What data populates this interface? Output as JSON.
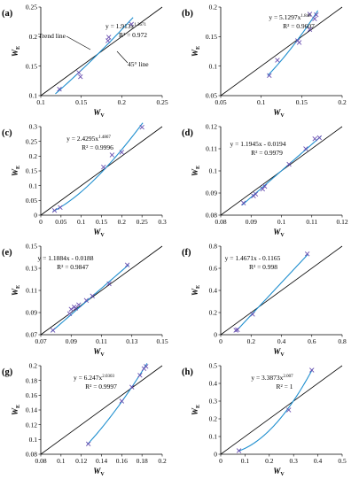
{
  "chart_data": [
    {
      "type": "scatter",
      "label": "(a)",
      "xlabel": "W",
      "xsub": "V",
      "ylabel": "W",
      "ysub": "E",
      "xlim": [
        0.1,
        0.25
      ],
      "ylim": [
        0.1,
        0.25
      ],
      "xticks": [
        "0.1",
        "0.15",
        "0.2",
        "0.25"
      ],
      "yticks": [
        "0.1",
        "0.15",
        "0.2",
        "0.25"
      ],
      "points": [
        [
          0.123,
          0.111
        ],
        [
          0.147,
          0.139
        ],
        [
          0.149,
          0.132
        ],
        [
          0.183,
          0.193
        ],
        [
          0.184,
          0.199
        ],
        [
          0.212,
          0.221
        ]
      ],
      "fit": {
        "kind": "power",
        "a": 1.913,
        "b": 1.3671,
        "xrange": [
          0.118,
          0.214
        ]
      },
      "equation": "y = 1.913x",
      "equation_exp": "1.3671",
      "r2_text": "R² = 0.972",
      "annotations": [
        "Trend line",
        "45° line"
      ]
    },
    {
      "type": "scatter",
      "label": "(b)",
      "xlabel": "W",
      "xsub": "V",
      "ylabel": "W",
      "ysub": "E",
      "xlim": [
        0.05,
        0.2
      ],
      "ylim": [
        0.05,
        0.2
      ],
      "xticks": [
        "0.05",
        "0.1",
        "0.15",
        "0.2"
      ],
      "yticks": [
        "0.05",
        "0.1",
        "0.15",
        "0.2"
      ],
      "points": [
        [
          0.11,
          0.084
        ],
        [
          0.12,
          0.11
        ],
        [
          0.145,
          0.143
        ],
        [
          0.147,
          0.14
        ],
        [
          0.16,
          0.162
        ],
        [
          0.16,
          0.188
        ],
        [
          0.166,
          0.18
        ],
        [
          0.168,
          0.187
        ]
      ],
      "fit": {
        "kind": "power",
        "a": 5.1297,
        "b": 1.848,
        "xrange": [
          0.108,
          0.17
        ]
      },
      "equation": "y = 5.1297x",
      "equation_exp": "1.848",
      "r2_text": "R² = 0.9607"
    },
    {
      "type": "scatter",
      "label": "(c)",
      "xlabel": "W",
      "xsub": "V",
      "ylabel": "W",
      "ysub": "E",
      "xlim": [
        0,
        0.3
      ],
      "ylim": [
        0,
        0.3
      ],
      "xticks": [
        "0",
        "0.05",
        "0.1",
        "0.15",
        "0.2",
        "0.25",
        "0.3"
      ],
      "yticks": [
        "0",
        "0.05",
        "0.1",
        "0.15",
        "0.2",
        "0.25",
        "0.3"
      ],
      "points": [
        [
          0.034,
          0.016
        ],
        [
          0.048,
          0.026
        ],
        [
          0.155,
          0.163
        ],
        [
          0.176,
          0.204
        ],
        [
          0.2,
          0.213
        ],
        [
          0.25,
          0.298
        ]
      ],
      "fit": {
        "kind": "power",
        "a": 2.4295,
        "b": 1.4867,
        "xrange": [
          0.03,
          0.252
        ]
      },
      "equation": "y = 2.4295x",
      "equation_exp": "1.4867",
      "r2_text": "R² = 0.9996"
    },
    {
      "type": "scatter",
      "label": "(d)",
      "xlabel": "W",
      "xsub": "V",
      "ylabel": "W",
      "ysub": "E",
      "xlim": [
        0.08,
        0.12
      ],
      "ylim": [
        0.08,
        0.12
      ],
      "xticks": [
        "0.08",
        "0.09",
        "0.1",
        "0.11",
        "0.12"
      ],
      "yticks": [
        "0.08",
        "0.09",
        "0.1",
        "0.11",
        "0.12"
      ],
      "points": [
        [
          0.0875,
          0.0855
        ],
        [
          0.0908,
          0.0887
        ],
        [
          0.0915,
          0.0895
        ],
        [
          0.0938,
          0.0918
        ],
        [
          0.0945,
          0.093
        ],
        [
          0.1025,
          0.103
        ],
        [
          0.108,
          0.11
        ],
        [
          0.111,
          0.1145
        ],
        [
          0.1125,
          0.115
        ]
      ],
      "fit": {
        "kind": "linear",
        "m": 1.1945,
        "c": -0.0194,
        "xrange": [
          0.087,
          0.113
        ]
      },
      "equation": "y = 1.1945x - 0.0194",
      "r2_text": "R² = 0.9979"
    },
    {
      "type": "scatter",
      "label": "(e)",
      "xlabel": "W",
      "xsub": "V",
      "ylabel": "W",
      "ysub": "E",
      "xlim": [
        0.07,
        0.15
      ],
      "ylim": [
        0.07,
        0.15
      ],
      "xticks": [
        "0.07",
        "0.09",
        "0.11",
        "0.13",
        "0.15"
      ],
      "yticks": [
        "0.07",
        "0.09",
        "0.11",
        "0.13",
        "0.15"
      ],
      "points": [
        [
          0.078,
          0.074
        ],
        [
          0.089,
          0.089
        ],
        [
          0.09,
          0.093
        ],
        [
          0.092,
          0.095
        ],
        [
          0.093,
          0.094
        ],
        [
          0.095,
          0.097
        ],
        [
          0.1,
          0.101
        ],
        [
          0.104,
          0.105
        ],
        [
          0.115,
          0.116
        ],
        [
          0.127,
          0.133
        ]
      ],
      "fit": {
        "kind": "linear",
        "m": 1.1884,
        "c": -0.0188,
        "xrange": [
          0.077,
          0.128
        ]
      },
      "equation": "y = 1.1884x - 0.0188",
      "r2_text": "R² = 0.9847"
    },
    {
      "type": "scatter",
      "label": "(f)",
      "xlabel": "W",
      "xsub": "V",
      "ylabel": "W",
      "ysub": "E",
      "xlim": [
        0,
        0.8
      ],
      "ylim": [
        0,
        0.8
      ],
      "xticks": [
        "0",
        "0.2",
        "0.4",
        "0.6",
        "0.8"
      ],
      "yticks": [
        "0",
        "0.2",
        "0.4",
        "0.6",
        "0.8"
      ],
      "points": [
        [
          0.1,
          0.04
        ],
        [
          0.11,
          0.045
        ],
        [
          0.21,
          0.185
        ],
        [
          0.57,
          0.73
        ]
      ],
      "fit": {
        "kind": "linear",
        "m": 1.4671,
        "c": -0.1165,
        "xrange": [
          0.1,
          0.575
        ]
      },
      "equation": "y = 1.4671x - 0.1165",
      "r2_text": "R² = 0.998"
    },
    {
      "type": "scatter",
      "label": "(g)",
      "xlabel": "W",
      "xsub": "V",
      "ylabel": "W",
      "ysub": "E",
      "xlim": [
        0.08,
        0.2
      ],
      "ylim": [
        0.08,
        0.2
      ],
      "xticks": [
        "0.08",
        "0.1",
        "0.12",
        "0.14",
        "0.16",
        "0.18",
        "0.2"
      ],
      "yticks": [
        "0.08",
        "0.1",
        "0.12",
        "0.14",
        "0.16",
        "0.18",
        "0.2"
      ],
      "points": [
        [
          0.127,
          0.094
        ],
        [
          0.16,
          0.152
        ],
        [
          0.17,
          0.171
        ],
        [
          0.178,
          0.187
        ],
        [
          0.182,
          0.196
        ],
        [
          0.184,
          0.199
        ]
      ],
      "fit": {
        "kind": "power",
        "a": 6.247,
        "b": 2.0303,
        "xrange": [
          0.126,
          0.185
        ]
      },
      "equation": "y = 6.247x",
      "equation_exp": "2.0303",
      "r2_text": "R² = 0.9997"
    },
    {
      "type": "scatter",
      "label": "(h)",
      "xlabel": "W",
      "xsub": "V",
      "ylabel": "W",
      "ysub": "E",
      "xlim": [
        0,
        0.5
      ],
      "ylim": [
        0,
        0.5
      ],
      "xticks": [
        "0",
        "0.1",
        "0.2",
        "0.3",
        "0.4",
        "0.5"
      ],
      "yticks": [
        "0",
        "0.1",
        "0.2",
        "0.3",
        "0.4",
        "0.5"
      ],
      "points": [
        [
          0.075,
          0.02
        ],
        [
          0.28,
          0.25
        ],
        [
          0.375,
          0.475
        ]
      ],
      "fit": {
        "kind": "power",
        "a": 3.3873,
        "b": 2.007,
        "xrange": [
          0.072,
          0.378
        ]
      },
      "equation": "y = 3.3873x",
      "equation_exp": "2.007",
      "r2_text": "R² = 1"
    }
  ]
}
